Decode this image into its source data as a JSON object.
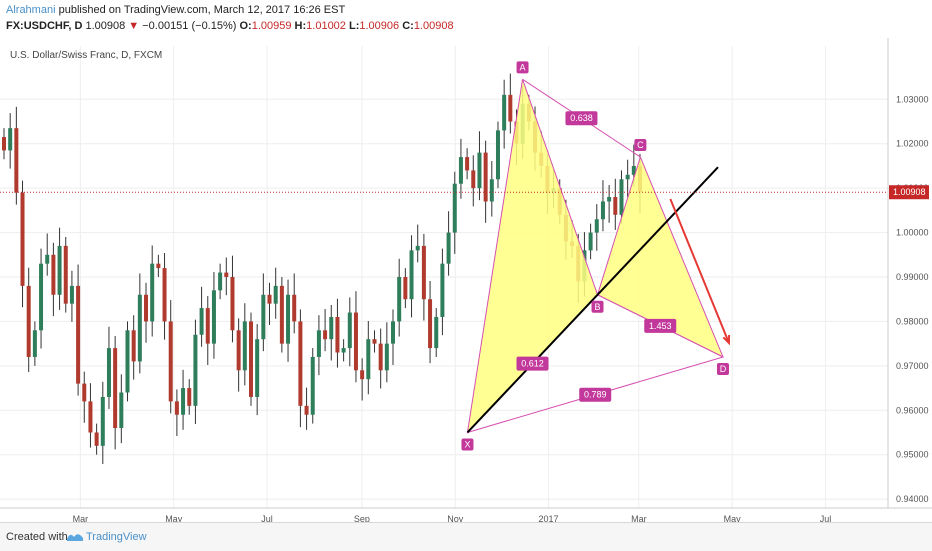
{
  "header": {
    "author": "Alrahmani",
    "published": "published on TradingView.com, March 12, 2017 16:26 EST",
    "symbol": "FX:USDCHF, D",
    "last": "1.00908",
    "change": "−0.00151 (−0.15%)",
    "o_label": "O:",
    "o_value": "1.00959",
    "h_label": "H:",
    "h_value": "1.01002",
    "l_label": "L:",
    "l_value": "1.00906",
    "c_label": "C:",
    "c_value": "1.00908"
  },
  "footer": {
    "created_with": "Created with",
    "brand": "TradingView"
  },
  "chart_data": {
    "type": "candlestick",
    "title": "U.S. Dollar/Swiss Franc, D, FXCM",
    "ylim": [
      0.938,
      1.042
    ],
    "y_ticks": [
      "1.03000",
      "1.02000",
      "1.01000",
      "1.00000",
      "0.99000",
      "0.98000",
      "0.97000",
      "0.96000",
      "0.95000",
      "0.94000"
    ],
    "x_ticks": [
      "Mar",
      "May",
      "Jul",
      "Sep",
      "Nov",
      "2017",
      "Mar",
      "May",
      "Jul"
    ],
    "current_price": "1.00908",
    "closes": [
      1.0185,
      1.0235,
      1.009,
      0.988,
      0.972,
      0.978,
      0.993,
      0.995,
      0.986,
      0.997,
      0.984,
      0.988,
      0.966,
      0.962,
      0.955,
      0.952,
      0.963,
      0.974,
      0.956,
      0.964,
      0.978,
      0.971,
      0.986,
      0.98,
      0.993,
      0.992,
      0.98,
      0.962,
      0.959,
      0.965,
      0.961,
      0.977,
      0.983,
      0.975,
      0.987,
      0.991,
      0.99,
      0.978,
      0.969,
      0.98,
      0.963,
      0.976,
      0.986,
      0.984,
      0.988,
      0.975,
      0.986,
      0.98,
      0.961,
      0.959,
      0.972,
      0.978,
      0.976,
      0.981,
      0.973,
      0.974,
      0.982,
      0.969,
      0.967,
      0.976,
      0.975,
      0.969,
      0.975,
      0.98,
      0.99,
      0.985,
      0.996,
      0.997,
      0.985,
      0.974,
      0.981,
      0.993,
      1.0,
      1.011,
      1.017,
      1.014,
      1.01,
      1.018,
      1.007,
      1.012,
      1.023,
      1.031,
      1.025,
      1.02,
      1.029,
      1.025,
      1.018,
      1.015,
      1.009,
      1.01,
      1.004,
      0.998,
      0.997,
      0.989,
      0.996,
      1.0,
      1.003,
      1.007,
      1.008,
      1.004,
      1.012,
      1.013,
      1.015,
      1.0091
    ],
    "pattern": {
      "points": [
        {
          "label": "X",
          "date": "2016-11-09",
          "y": 0.955
        },
        {
          "label": "A",
          "date": "2016-12-15",
          "y": 1.0345
        },
        {
          "label": "B",
          "date": "2017-02-02",
          "y": 0.986
        },
        {
          "label": "C",
          "date": "2017-03-02",
          "y": 1.017
        },
        {
          "label": "D",
          "date": "2017-04-25",
          "y": 0.972
        }
      ],
      "ratios": [
        {
          "label": "0.638",
          "between": "A-C"
        },
        {
          "label": "0.612",
          "between": "X-B"
        },
        {
          "label": "1.453",
          "between": "B-D"
        },
        {
          "label": "0.789",
          "between": "X-D"
        }
      ],
      "fill_color": "#ffff80",
      "line_color": "#d64fb0",
      "label_color": "#c2399b"
    },
    "trendline": {
      "color": "#000000"
    },
    "projection_arrow": {
      "color": "#e53935"
    },
    "up_color": "#2e7d5b",
    "down_color": "#b03a2e"
  }
}
